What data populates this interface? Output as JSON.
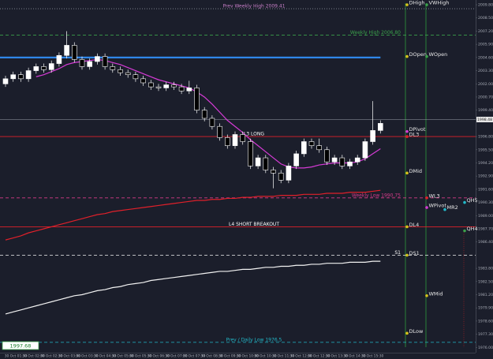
{
  "chart_data": {
    "type": "candlestick",
    "ylim": [
      1975.48,
      2010.27
    ],
    "yticks": [
      {
        "value": 2009.8,
        "label": "2009.80"
      },
      {
        "value": 2008.5,
        "label": "2008.50"
      },
      {
        "value": 2007.2,
        "label": "2007.20"
      },
      {
        "value": 2005.9,
        "label": "2005.90"
      },
      {
        "value": 2004.6,
        "label": "2004.60"
      },
      {
        "value": 2003.3,
        "label": "2003.30"
      },
      {
        "value": 2002,
        "label": "2002.00"
      },
      {
        "value": 2000.7,
        "label": "2000.70"
      },
      {
        "value": 1999.4,
        "label": "1999.40"
      },
      {
        "value": 1996.8,
        "label": "1996.80"
      },
      {
        "value": 1995.5,
        "label": "1995.50"
      },
      {
        "value": 1994.2,
        "label": "1994.20"
      },
      {
        "value": 1992.9,
        "label": "1992.90"
      },
      {
        "value": 1991.6,
        "label": "1991.60"
      },
      {
        "value": 1990.3,
        "label": "1990.30"
      },
      {
        "value": 1989,
        "label": "1989.00"
      },
      {
        "value": 1987.7,
        "label": "1987.70"
      },
      {
        "value": 1986.4,
        "label": "1986.40"
      },
      {
        "value": 1983.8,
        "label": "1983.80"
      },
      {
        "value": 1982.5,
        "label": "1982.50"
      },
      {
        "value": 1981.2,
        "label": "1981.20"
      },
      {
        "value": 1979.9,
        "label": "1979.90"
      },
      {
        "value": 1978.6,
        "label": "1978.60"
      },
      {
        "value": 1977.3,
        "label": "1977.30"
      },
      {
        "value": 1976,
        "label": "1976.00"
      }
    ],
    "x_labels": [
      "30 Oct 01:30",
      "30 Oct 02:00",
      "30 Oct 02:30",
      "30 Oct 03:00",
      "30 Oct 03:30",
      "30 Oct 04:30",
      "30 Oct 05:00",
      "30 Oct 05:30",
      "30 Oct 06:30",
      "30 Oct 07:00",
      "30 Oct 07:30",
      "30 Oct 08:30",
      "30 Oct 09:30",
      "30 Oct 10:00",
      "30 Oct 10:30",
      "30 Oct 11:30",
      "30 Oct 12:00",
      "30 Oct 12:30",
      "30 Oct 13:30",
      "30 Oct 14:30",
      "30 Oct 15:30"
    ],
    "candles": {
      "open": [
        2002.0,
        2002.5,
        2002.9,
        2002.5,
        2003.3,
        2003.7,
        2003.4,
        2004.0,
        2004.8,
        2005.8,
        2004.4,
        2003.7,
        2004.2,
        2004.7,
        2003.7,
        2003.4,
        2003.1,
        2002.9,
        2002.5,
        2002.1,
        2001.7,
        2001.6,
        2001.9,
        2001.7,
        2001.3,
        2001.6,
        1999.4,
        1998.6,
        1997.8,
        1996.7,
        1995.9,
        1997.0,
        1996.3,
        1993.9,
        1994.7,
        1993.5,
        1993.2,
        1992.5,
        1993.9,
        1995.1,
        1996.3,
        1995.9,
        1995.5,
        1994.3,
        1994.7,
        1993.9,
        1994.3,
        1994.7,
        1996.3,
        1997.4
      ],
      "high": [
        2002.8,
        2003.2,
        2003.2,
        2003.6,
        2004.0,
        2004.0,
        2004.3,
        2005.1,
        2007.2,
        2006.1,
        2004.7,
        2004.5,
        2005.0,
        2005.0,
        2004.0,
        2003.7,
        2003.4,
        2003.2,
        2002.8,
        2002.4,
        2002.0,
        2002.2,
        2002.2,
        2002.0,
        2002.3,
        2001.9,
        1999.7,
        1998.9,
        1998.1,
        1997.0,
        1997.3,
        1997.3,
        1996.6,
        1995.0,
        1995.0,
        1993.8,
        1993.5,
        1994.2,
        1995.4,
        1996.6,
        1996.6,
        1996.6,
        1995.8,
        1995.0,
        1995.0,
        1994.6,
        1995.0,
        1996.6,
        2000.3,
        1998.4
      ],
      "low": [
        2001.7,
        2002.2,
        2002.2,
        2002.2,
        2003.0,
        2003.1,
        2003.1,
        2003.7,
        2004.5,
        2004.1,
        2003.4,
        2003.4,
        2003.9,
        2003.4,
        2003.1,
        2002.8,
        2002.6,
        2002.2,
        2001.8,
        2001.4,
        2001.3,
        2001.3,
        2001.4,
        2001.0,
        2001.0,
        1999.1,
        1998.3,
        1997.5,
        1996.4,
        1995.6,
        1995.6,
        1996.0,
        1993.6,
        1993.6,
        1993.2,
        1991.7,
        1992.2,
        1992.2,
        1993.6,
        1994.8,
        1995.6,
        1995.2,
        1994.0,
        1994.0,
        1993.6,
        1993.6,
        1994.0,
        1994.4,
        1996.0,
        1997.1
      ],
      "close": [
        2002.5,
        2002.9,
        2002.5,
        2003.3,
        2003.7,
        2003.4,
        2004.0,
        2004.8,
        2005.8,
        2004.4,
        2003.7,
        2004.2,
        2004.7,
        2003.7,
        2003.4,
        2003.1,
        2002.9,
        2002.5,
        2002.1,
        2001.7,
        2001.6,
        2001.9,
        2001.7,
        2001.3,
        2001.6,
        1999.4,
        1998.6,
        1997.8,
        1996.7,
        1995.9,
        1997.0,
        1996.3,
        1993.9,
        1994.7,
        1993.5,
        1993.2,
        1992.5,
        1993.9,
        1995.1,
        1996.3,
        1995.9,
        1995.5,
        1994.3,
        1994.7,
        1993.9,
        1994.3,
        1994.7,
        1996.3,
        1997.4,
        1998.1
      ],
      "up_color": "#ffffff",
      "down_color": "#000000"
    },
    "overlays": [
      {
        "color": "#d63bd6",
        "values": [
          null,
          null,
          null,
          null,
          2002.7,
          2002.9,
          2003.2,
          2003.5,
          2003.9,
          2004.1,
          2004.2,
          2004.3,
          2004.4,
          2004.3,
          2004.1,
          2003.9,
          2003.6,
          2003.3,
          2003.0,
          2002.7,
          2002.4,
          2002.2,
          2002.0,
          2001.8,
          2001.6,
          2001.2,
          2000.7,
          2000.0,
          1999.2,
          1998.4,
          1997.8,
          1997.2,
          1996.5,
          1995.9,
          1995.3,
          1994.7,
          1994.1,
          1993.8,
          1993.7,
          1993.7,
          1993.8,
          1994.0,
          1994.1,
          1994.2,
          1994.2,
          1994.2,
          1994.3,
          1994.6,
          1995.1,
          1995.6
        ]
      },
      {
        "color": "#e0202a",
        "values": [
          1986.6,
          1986.8,
          1987.0,
          1987.3,
          1987.5,
          1987.7,
          1987.9,
          1988.1,
          1988.3,
          1988.5,
          1988.7,
          1988.9,
          1989.1,
          1989.2,
          1989.4,
          1989.5,
          1989.6,
          1989.7,
          1989.8,
          1989.9,
          1990.0,
          1990.1,
          1990.2,
          1990.3,
          1990.4,
          1990.5,
          1990.5,
          1990.6,
          1990.6,
          1990.7,
          1990.7,
          1990.8,
          1990.8,
          1990.9,
          1990.9,
          1990.9,
          1991.0,
          1991.0,
          1991.0,
          1991.1,
          1991.1,
          1991.1,
          1991.2,
          1991.2,
          1991.2,
          1991.3,
          1991.3,
          1991.3,
          1991.4,
          1991.5
        ]
      },
      {
        "color": "#f2f2f2",
        "values": [
          1979.3,
          1979.5,
          1979.7,
          1979.9,
          1980.1,
          1980.3,
          1980.5,
          1980.7,
          1980.9,
          1981.1,
          1981.2,
          1981.4,
          1981.6,
          1981.7,
          1981.9,
          1982.0,
          1982.2,
          1982.3,
          1982.4,
          1982.6,
          1982.7,
          1982.8,
          1982.9,
          1983.0,
          1983.1,
          1983.2,
          1983.3,
          1983.4,
          1983.5,
          1983.5,
          1983.6,
          1983.7,
          1983.7,
          1983.8,
          1983.9,
          1983.9,
          1984.0,
          1984.0,
          1984.1,
          1984.1,
          1984.2,
          1984.2,
          1984.3,
          1984.3,
          1984.3,
          1984.4,
          1984.4,
          1984.4,
          1984.5,
          1984.5
        ]
      }
    ],
    "levels": [
      {
        "label": "Prev Weekly High 2009.41",
        "value": 2009.41,
        "color": "#8a8f99",
        "dash": "dot",
        "anchor": "center",
        "label_color": "#c77fc7"
      },
      {
        "label": "Weekly High 2006.80",
        "value": 2006.8,
        "color": "#3aa04a",
        "dash": "dash",
        "anchor": "right",
        "label_color": "#3aa04a"
      },
      {
        "value": 2004.6,
        "color": "#2f86e8",
        "dash": "solid",
        "anchor": "history"
      },
      {
        "label": "L3 LONG",
        "value": 1996.8,
        "color": "#e0202a",
        "dash": "solid",
        "anchor": "center",
        "label_color": "#ffffff"
      },
      {
        "label": "Weekly Low 1990.75",
        "value": 1990.75,
        "color": "#d63b8a",
        "dash": "dash",
        "anchor": "right",
        "label_color": "#d63b8a"
      },
      {
        "label": "L4 SHORT BREAKOUT",
        "value": 1987.9,
        "color": "#e0202a",
        "dash": "solid",
        "anchor": "center",
        "label_color": "#ffffff"
      },
      {
        "label": "S1",
        "value": 1985.1,
        "color": "#f2f2f2",
        "dash": "dash",
        "anchor": "right",
        "label_color": "#ffffff"
      },
      {
        "label": "Prev / Daily Low 1976.5",
        "value": 1976.5,
        "color": "#22b8c8",
        "dash": "dash",
        "anchor": "center",
        "label_color": "#22b8c8"
      }
    ],
    "markers": [
      {
        "label": "DHigh",
        "value": 2009.8,
        "color": "#d8c21a",
        "column": 1
      },
      {
        "label": "VWHigh",
        "value": 2009.8,
        "color": "#3aa04a",
        "column": 2
      },
      {
        "label": "DOpen",
        "value": 2004.7,
        "color": "#d8c21a",
        "column": 1
      },
      {
        "label": "WOpen",
        "value": 2004.7,
        "color": "#3aa04a",
        "column": 2
      },
      {
        "label": "DPivot",
        "value": 1997.3,
        "color": "#d63bd6",
        "column": 1
      },
      {
        "label": "DL3",
        "value": 1996.8,
        "color": "#e0202a",
        "column": 1
      },
      {
        "label": "DMid",
        "value": 1993.2,
        "color": "#d8c21a",
        "column": 1
      },
      {
        "label": "WL3",
        "value": 1990.75,
        "color": "#e0202a",
        "column": 2
      },
      {
        "label": "QH5",
        "value": 1990.3,
        "color": "#22b8c8",
        "column": 4
      },
      {
        "label": "WPivot",
        "value": 1989.8,
        "color": "#d63bd6",
        "column": 2
      },
      {
        "label": "MR2",
        "value": 1989.6,
        "color": "#22b8c8",
        "column": 3
      },
      {
        "label": "DL4",
        "value": 1987.9,
        "color": "#d8c21a",
        "column": 1
      },
      {
        "label": "QH4",
        "value": 1987.5,
        "color": "#3aa04a",
        "column": 4
      },
      {
        "label": "DS1",
        "value": 1985.1,
        "color": "#d8c21a",
        "column": 1
      },
      {
        "label": "WMid",
        "value": 1981.1,
        "color": "#d8c21a",
        "column": 2
      },
      {
        "label": "DLow",
        "value": 1977.4,
        "color": "#d8c21a",
        "column": 1
      }
    ],
    "current_price": 1998.48,
    "price_box": "1997.68"
  }
}
